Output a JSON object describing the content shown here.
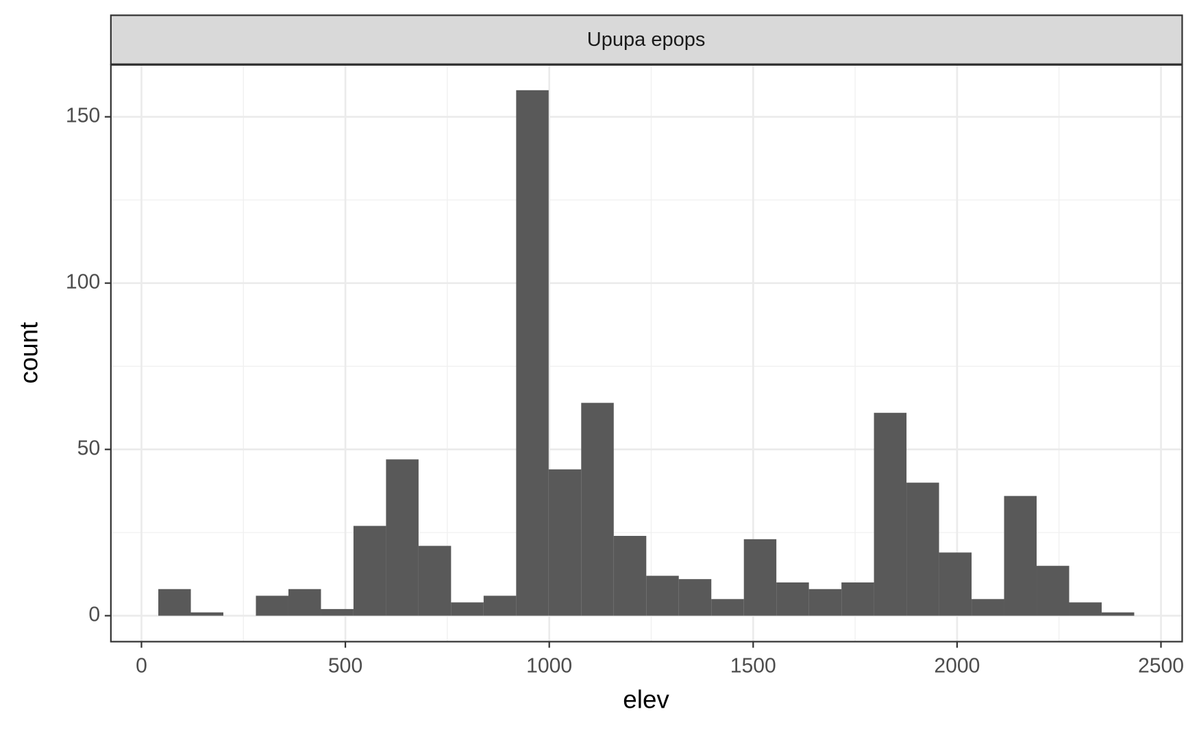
{
  "chart_data": {
    "type": "histogram",
    "strip": "Upupa epops",
    "x_label": "elev",
    "y_label": "count",
    "bins": [
      41.3,
      121.1,
      200.8,
      280.6,
      360.4,
      440.2,
      519.9,
      599.7,
      679.5,
      759.2,
      839.0,
      918.8,
      998.5,
      1078.3,
      1158.1,
      1237.9,
      1317.6,
      1397.4,
      1477.2,
      1556.9,
      1636.7,
      1716.5,
      1796.2,
      1876.0,
      1955.8,
      2035.6,
      2115.3,
      2195.1,
      2274.9,
      2354.6,
      2434.4
    ],
    "values": [
      8,
      1,
      0,
      6,
      8,
      2,
      27,
      47,
      21,
      4,
      6,
      158,
      44,
      64,
      24,
      12,
      11,
      5,
      23,
      10,
      8,
      10,
      61,
      40,
      19,
      5,
      36,
      15,
      4,
      1
    ],
    "color": "#595959",
    "xlim": [
      -75,
      2552
    ],
    "ylim": [
      -7.8,
      165.6
    ],
    "xticks": [
      0,
      500,
      1000,
      1500,
      2000,
      2500
    ],
    "yticks": [
      0,
      50,
      100,
      150
    ],
    "grid": true
  }
}
